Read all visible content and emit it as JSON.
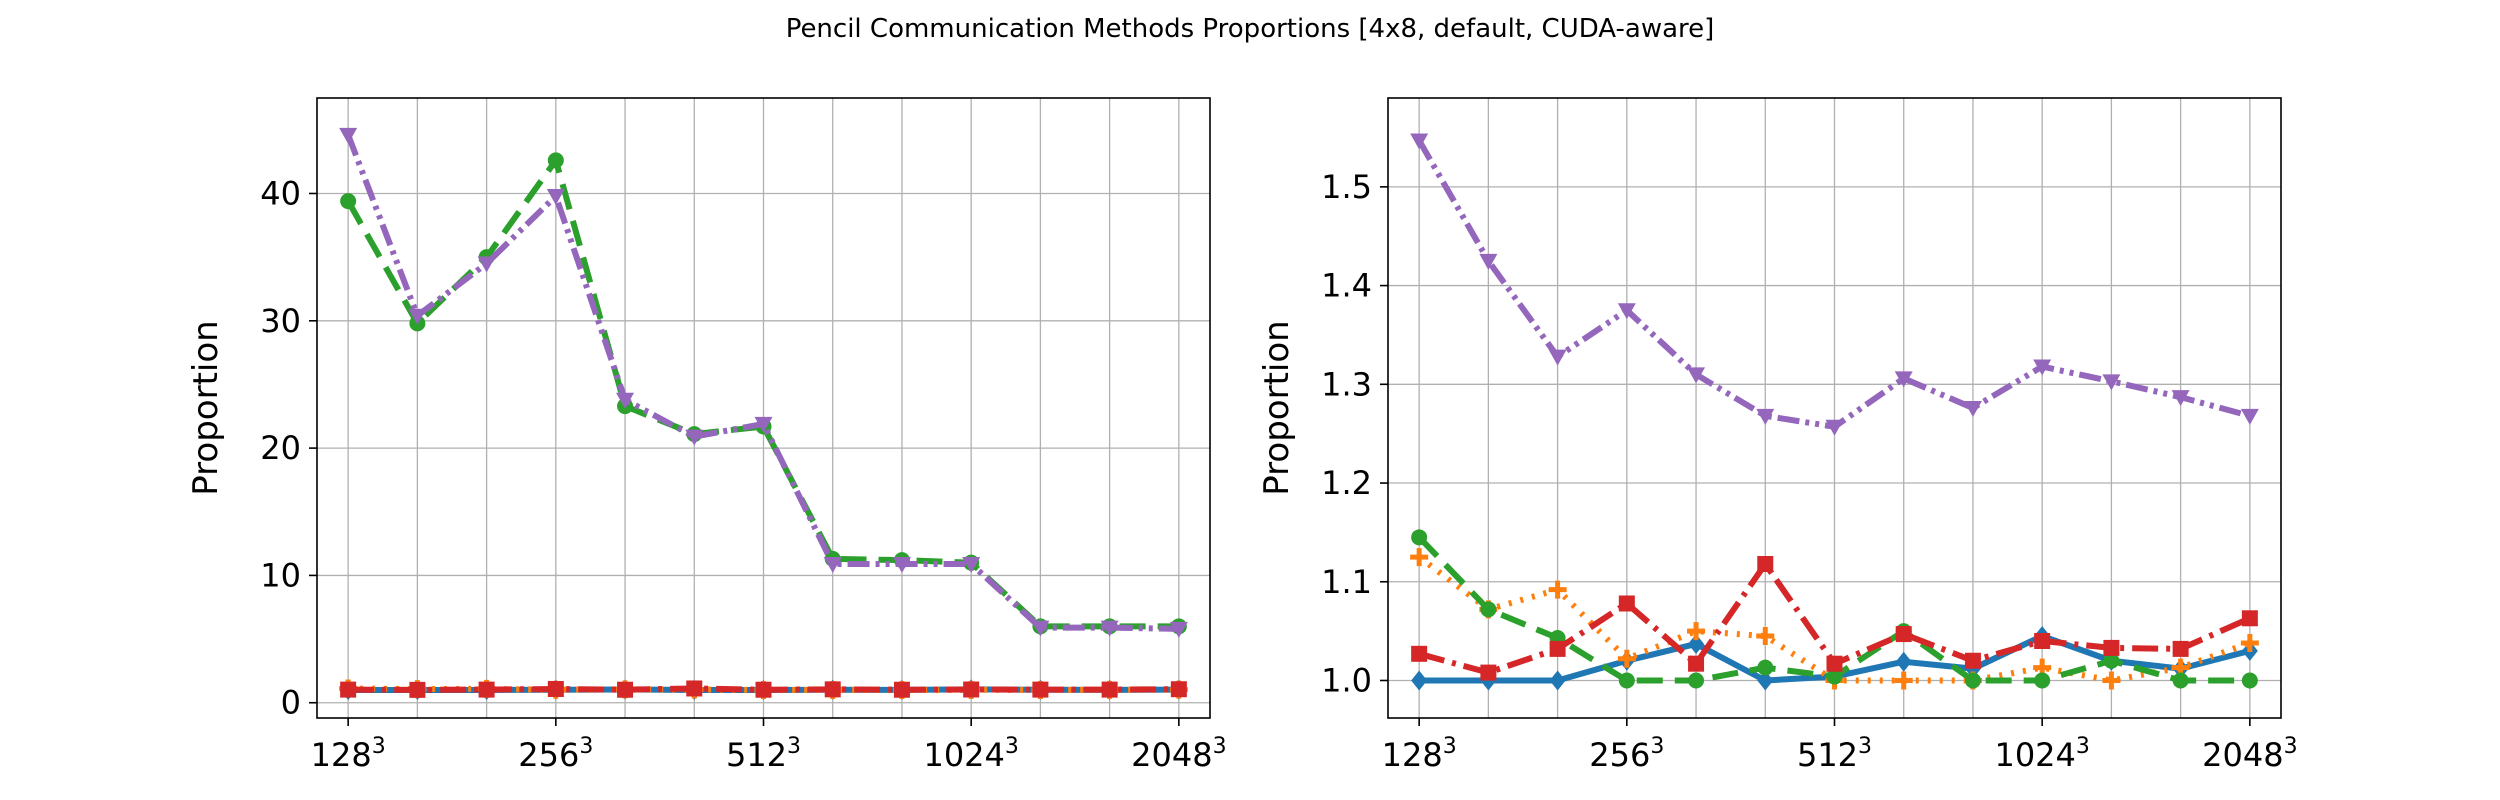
{
  "title": "Pencil Communication Methods Proportions [4x8, default, CUDA-aware]",
  "chart_data": [
    {
      "type": "line",
      "ylabel": "Proportion",
      "xlabel": "",
      "ylim": [
        -1.2,
        47.5
      ],
      "yticks": [
        0,
        10,
        20,
        30,
        40
      ],
      "x": [
        0,
        1,
        2,
        3,
        4,
        5,
        6,
        7,
        8,
        9,
        10,
        11,
        12
      ],
      "xtick_labels": [
        {
          "pos": 0,
          "base": "128",
          "exp": "3"
        },
        {
          "pos": 3,
          "base": "256",
          "exp": "3"
        },
        {
          "pos": 6,
          "base": "512",
          "exp": "3"
        },
        {
          "pos": 9,
          "base": "1024",
          "exp": "3"
        },
        {
          "pos": 12,
          "base": "2048",
          "exp": "3"
        }
      ],
      "grid": true,
      "series": [
        {
          "color": "#1f77b4",
          "dash": "",
          "marker": "diamond",
          "values": [
            1.0,
            1.0,
            1.0,
            1.02,
            1.04,
            1.0,
            1.0,
            1.02,
            1.01,
            1.05,
            1.02,
            1.01,
            1.03
          ]
        },
        {
          "color": "#ff7f0e",
          "dash": "3 9",
          "marker": "plus",
          "values": [
            1.12,
            1.07,
            1.09,
            1.02,
            1.05,
            1.04,
            1.0,
            1.0,
            1.0,
            1.01,
            1.0,
            1.01,
            1.03
          ]
        },
        {
          "color": "#2ca02c",
          "dash": "26 12",
          "marker": "circle",
          "values": [
            39.4,
            29.8,
            35.0,
            42.6,
            23.3,
            21.1,
            21.7,
            11.3,
            11.2,
            11.0,
            6.0,
            6.0,
            6.0
          ]
        },
        {
          "color": "#d62728",
          "dash": "26 8 4 8",
          "marker": "square",
          "values": [
            1.03,
            1.01,
            1.03,
            1.08,
            1.02,
            1.12,
            1.02,
            1.05,
            1.02,
            1.04,
            1.03,
            1.03,
            1.06
          ]
        },
        {
          "color": "#9467bd",
          "dash": "22 6 4 6 4 6",
          "marker": "triangle-down",
          "values": [
            44.6,
            30.4,
            34.5,
            39.8,
            23.8,
            20.9,
            21.9,
            10.9,
            10.9,
            10.9,
            5.9,
            5.9,
            5.8
          ]
        }
      ]
    },
    {
      "type": "line",
      "ylabel": "Proportion",
      "xlabel": "",
      "ylim": [
        0.962,
        1.59
      ],
      "yticks": [
        1.0,
        1.1,
        1.2,
        1.3,
        1.4,
        1.5
      ],
      "ytick_labels": [
        "1.0",
        "1.1",
        "1.2",
        "1.3",
        "1.4",
        "1.5"
      ],
      "x": [
        0,
        1,
        2,
        3,
        4,
        5,
        6,
        7,
        8,
        9,
        10,
        11,
        12
      ],
      "xtick_labels": [
        {
          "pos": 0,
          "base": "128",
          "exp": "3"
        },
        {
          "pos": 3,
          "base": "256",
          "exp": "3"
        },
        {
          "pos": 6,
          "base": "512",
          "exp": "3"
        },
        {
          "pos": 9,
          "base": "1024",
          "exp": "3"
        },
        {
          "pos": 12,
          "base": "2048",
          "exp": "3"
        }
      ],
      "grid": true,
      "series": [
        {
          "color": "#1f77b4",
          "dash": "",
          "marker": "diamond",
          "values": [
            1.0,
            1.0,
            1.0,
            1.02,
            1.037,
            1.0,
            1.004,
            1.019,
            1.012,
            1.045,
            1.02,
            1.012,
            1.03
          ]
        },
        {
          "color": "#ff7f0e",
          "dash": "3 9",
          "marker": "plus",
          "values": [
            1.125,
            1.072,
            1.092,
            1.022,
            1.05,
            1.045,
            1.0,
            1.0,
            1.0,
            1.013,
            1.0,
            1.013,
            1.038
          ]
        },
        {
          "color": "#2ca02c",
          "dash": "26 12",
          "marker": "circle",
          "values": [
            1.145,
            1.072,
            1.043,
            1.0,
            1.0,
            1.013,
            1.004,
            1.05,
            1.0,
            1.0,
            1.02,
            1.0,
            1.0
          ]
        },
        {
          "color": "#d62728",
          "dash": "26 8 4 8",
          "marker": "square",
          "values": [
            1.027,
            1.008,
            1.032,
            1.078,
            1.017,
            1.118,
            1.017,
            1.047,
            1.02,
            1.04,
            1.033,
            1.032,
            1.063
          ]
        },
        {
          "color": "#9467bd",
          "dash": "22 6 4 6 4 6",
          "marker": "triangle-down",
          "values": [
            1.547,
            1.425,
            1.328,
            1.375,
            1.31,
            1.268,
            1.257,
            1.306,
            1.276,
            1.318,
            1.303,
            1.287,
            1.268
          ]
        }
      ]
    }
  ]
}
